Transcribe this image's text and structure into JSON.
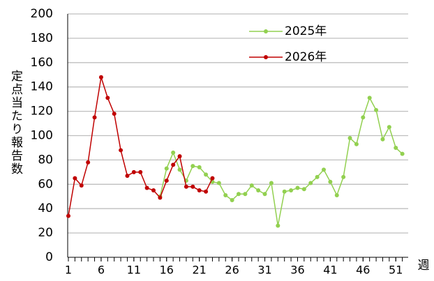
{
  "chart_data": {
    "type": "line",
    "y_label": "定点当たり報告数",
    "x_label": "週",
    "x": [
      1,
      2,
      3,
      4,
      5,
      6,
      7,
      8,
      9,
      10,
      11,
      12,
      13,
      14,
      15,
      16,
      17,
      18,
      19,
      20,
      21,
      22,
      23,
      24,
      25,
      26,
      27,
      28,
      29,
      30,
      31,
      32,
      33,
      34,
      35,
      36,
      37,
      38,
      39,
      40,
      41,
      42,
      43,
      44,
      45,
      46,
      47,
      48,
      49,
      50,
      51,
      52
    ],
    "series": [
      {
        "name": "2025年",
        "color": "#92d050",
        "values": [
          null,
          null,
          null,
          null,
          null,
          null,
          null,
          null,
          null,
          null,
          null,
          null,
          null,
          null,
          50,
          73,
          86,
          72,
          63,
          75,
          74,
          68,
          62,
          61,
          51,
          47,
          52,
          52,
          59,
          55,
          52,
          61,
          26,
          54,
          55,
          57,
          56,
          61,
          66,
          72,
          62,
          51,
          66,
          98,
          93,
          115,
          131,
          121,
          97,
          107,
          90,
          85
        ]
      },
      {
        "name": "2026年",
        "color": "#c00000",
        "values": [
          34,
          65,
          59,
          78,
          115,
          148,
          131,
          118,
          88,
          67,
          70,
          70,
          57,
          55,
          49,
          63,
          76,
          83,
          58,
          58,
          55,
          54,
          65,
          null,
          null,
          null,
          null,
          null,
          null,
          null,
          null,
          null,
          null,
          null,
          null,
          null,
          null,
          null,
          null,
          null,
          null,
          null,
          null,
          null,
          null,
          null,
          null,
          null,
          null,
          null,
          null,
          null
        ]
      }
    ],
    "xlim": [
      1,
      53
    ],
    "xticks": [
      1,
      6,
      11,
      16,
      21,
      26,
      31,
      36,
      41,
      46,
      51
    ],
    "ylim": [
      0,
      200
    ],
    "yticks": [
      0,
      20,
      40,
      60,
      80,
      100,
      120,
      140,
      160,
      180,
      200
    ],
    "grid": true
  }
}
